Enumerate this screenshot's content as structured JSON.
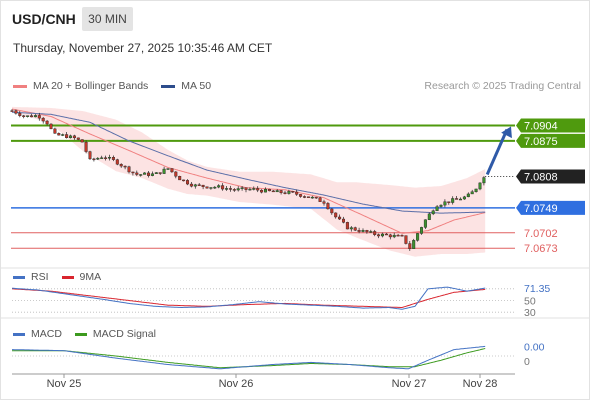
{
  "header": {
    "symbol": "USD/CNH",
    "timeframe": "30 MIN",
    "datetime": "Thursday, November 27, 2025 10:35:46 AM CET"
  },
  "legend": {
    "items": [
      {
        "label": "MA 20 + Bollinger Bands",
        "color": "#f08080"
      },
      {
        "label": "MA 50",
        "color": "#2d4d8c"
      }
    ],
    "credit": "Research © 2025 Trading Central"
  },
  "chart_data": [
    {
      "type": "candlestick",
      "title": "USD/CNH",
      "ylim": [
        7.0647,
        7.0952
      ],
      "x_ticks": [
        "Nov 25",
        "Nov 26",
        "Nov 27",
        "Nov 28"
      ],
      "levels": [
        {
          "label": "7.0904",
          "value": 7.0904,
          "color": "#4f9a0e",
          "kind": "resistance"
        },
        {
          "label": "7.0875",
          "value": 7.0875,
          "color": "#4f9a0e",
          "kind": "resistance"
        },
        {
          "label": "7.0808",
          "value": 7.0808,
          "color": "#222222",
          "kind": "last"
        },
        {
          "label": "7.0749",
          "value": 7.0749,
          "color": "#2f6fe0",
          "kind": "pivot"
        },
        {
          "label": "7.0702",
          "value": 7.0702,
          "color": "#e06060",
          "kind": "support"
        },
        {
          "label": "7.0673",
          "value": 7.0673,
          "color": "#e06060",
          "kind": "support"
        }
      ],
      "close_profile": [
        [
          0,
          7.0932
        ],
        [
          10,
          7.0921
        ],
        [
          20,
          7.0923
        ],
        [
          28,
          7.0907
        ],
        [
          32,
          7.0886
        ],
        [
          40,
          7.0885
        ],
        [
          48,
          7.088
        ],
        [
          54,
          7.0873
        ],
        [
          60,
          7.0838
        ],
        [
          70,
          7.0846
        ],
        [
          80,
          7.0836
        ],
        [
          95,
          7.0812
        ],
        [
          110,
          7.0812
        ],
        [
          120,
          7.0823
        ],
        [
          130,
          7.0802
        ],
        [
          140,
          7.0791
        ],
        [
          150,
          7.0789
        ],
        [
          160,
          7.0788
        ],
        [
          170,
          7.0783
        ],
        [
          185,
          7.0784
        ],
        [
          200,
          7.0779
        ],
        [
          215,
          7.0777
        ],
        [
          228,
          7.077
        ],
        [
          240,
          7.076
        ],
        [
          248,
          7.0734
        ],
        [
          258,
          7.0712
        ],
        [
          268,
          7.0706
        ],
        [
          280,
          7.0699
        ],
        [
          290,
          7.0697
        ],
        [
          300,
          7.0694
        ],
        [
          306,
          7.0673
        ],
        [
          312,
          7.0701
        ],
        [
          318,
          7.0726
        ],
        [
          326,
          7.0754
        ],
        [
          334,
          7.076
        ],
        [
          342,
          7.0765
        ],
        [
          350,
          7.077
        ],
        [
          356,
          7.0782
        ],
        [
          360,
          7.0799
        ],
        [
          364,
          7.0808
        ]
      ],
      "ma20_profile": [
        [
          0,
          7.0935
        ],
        [
          30,
          7.0921
        ],
        [
          60,
          7.0888
        ],
        [
          90,
          7.0857
        ],
        [
          120,
          7.0825
        ],
        [
          150,
          7.0805
        ],
        [
          180,
          7.0787
        ],
        [
          210,
          7.0783
        ],
        [
          240,
          7.0768
        ],
        [
          270,
          7.0735
        ],
        [
          300,
          7.0701
        ],
        [
          320,
          7.0706
        ],
        [
          340,
          7.0726
        ],
        [
          364,
          7.074
        ]
      ],
      "bb_upper_profile": [
        [
          0,
          7.0939
        ],
        [
          30,
          7.0937
        ],
        [
          55,
          7.0931
        ],
        [
          80,
          7.0915
        ],
        [
          100,
          7.0891
        ],
        [
          120,
          7.0858
        ],
        [
          135,
          7.0838
        ],
        [
          150,
          7.0826
        ],
        [
          175,
          7.0817
        ],
        [
          200,
          7.0817
        ],
        [
          230,
          7.0812
        ],
        [
          250,
          7.0797
        ],
        [
          265,
          7.0797
        ],
        [
          290,
          7.0792
        ],
        [
          310,
          7.0787
        ],
        [
          330,
          7.079
        ],
        [
          350,
          7.0805
        ],
        [
          364,
          7.0822
        ]
      ],
      "bb_lower_profile": [
        [
          0,
          7.0931
        ],
        [
          30,
          7.0907
        ],
        [
          55,
          7.0855
        ],
        [
          80,
          7.0818
        ],
        [
          100,
          7.0805
        ],
        [
          120,
          7.0785
        ],
        [
          135,
          7.0775
        ],
        [
          150,
          7.0772
        ],
        [
          175,
          7.076
        ],
        [
          200,
          7.0755
        ],
        [
          230,
          7.0747
        ],
        [
          250,
          7.0708
        ],
        [
          265,
          7.0693
        ],
        [
          290,
          7.0669
        ],
        [
          310,
          7.0657
        ],
        [
          330,
          7.0662
        ],
        [
          350,
          7.0662
        ],
        [
          364,
          7.0665
        ]
      ],
      "ma50_profile": [
        [
          0,
          7.0929
        ],
        [
          30,
          7.0925
        ],
        [
          60,
          7.091
        ],
        [
          90,
          7.0875
        ],
        [
          120,
          7.0847
        ],
        [
          150,
          7.082
        ],
        [
          180,
          7.0803
        ],
        [
          210,
          7.0787
        ],
        [
          240,
          7.0773
        ],
        [
          270,
          7.0756
        ],
        [
          300,
          7.0743
        ],
        [
          330,
          7.0739
        ],
        [
          364,
          7.0741
        ]
      ]
    },
    {
      "type": "line",
      "title": "RSI",
      "series": [
        {
          "name": "RSI",
          "color": "#4472c4",
          "values": [
            [
              0,
              71
            ],
            [
              20,
              68
            ],
            [
              45,
              60
            ],
            [
              70,
              52
            ],
            [
              90,
              45
            ],
            [
              110,
              40
            ],
            [
              130,
              38
            ],
            [
              150,
              39
            ],
            [
              170,
              43
            ],
            [
              190,
              48
            ],
            [
              210,
              44
            ],
            [
              230,
              42
            ],
            [
              250,
              40
            ],
            [
              270,
              37
            ],
            [
              290,
              38
            ],
            [
              300,
              35
            ],
            [
              310,
              40
            ],
            [
              320,
              70
            ],
            [
              335,
              73
            ],
            [
              350,
              66
            ],
            [
              364,
              71.35
            ]
          ]
        },
        {
          "name": "9MA",
          "color": "#d9252e",
          "values": [
            [
              0,
              70
            ],
            [
              30,
              66
            ],
            [
              60,
              58
            ],
            [
              90,
              50
            ],
            [
              120,
              42
            ],
            [
              150,
              40
            ],
            [
              180,
              43
            ],
            [
              210,
              45
            ],
            [
              240,
              42
            ],
            [
              270,
              40
            ],
            [
              300,
              38
            ],
            [
              320,
              52
            ],
            [
              340,
              64
            ],
            [
              364,
              69
            ]
          ]
        }
      ],
      "ylim": [
        20,
        80
      ],
      "ticks": [
        "50",
        "30"
      ],
      "last_value_label": "71.35"
    },
    {
      "type": "line",
      "title": "MACD",
      "series": [
        {
          "name": "MACD",
          "color": "#4472c4",
          "values": [
            [
              0,
              0.0006
            ],
            [
              40,
              0.0005
            ],
            [
              80,
              -0.0002
            ],
            [
              120,
              -0.0008
            ],
            [
              160,
              -0.0012
            ],
            [
              200,
              -0.0008
            ],
            [
              230,
              -0.0006
            ],
            [
              260,
              -0.0008
            ],
            [
              290,
              -0.0011
            ],
            [
              305,
              -0.0012
            ],
            [
              320,
              -0.0004
            ],
            [
              340,
              0.0006
            ],
            [
              364,
              0.0009
            ]
          ]
        },
        {
          "name": "MACD Signal",
          "color": "#3c9a1e",
          "values": [
            [
              0,
              0.0005
            ],
            [
              40,
              0.0005
            ],
            [
              80,
              0.0
            ],
            [
              120,
              -0.0006
            ],
            [
              160,
              -0.0011
            ],
            [
              200,
              -0.0009
            ],
            [
              230,
              -0.0007
            ],
            [
              260,
              -0.0008
            ],
            [
              290,
              -0.001
            ],
            [
              310,
              -0.001
            ],
            [
              330,
              -0.0004
            ],
            [
              350,
              0.0003
            ],
            [
              364,
              0.0007
            ]
          ]
        }
      ],
      "ylim": [
        -0.0015,
        0.0015
      ],
      "ticks": [
        "0"
      ],
      "last_value_label": "0.00"
    }
  ]
}
